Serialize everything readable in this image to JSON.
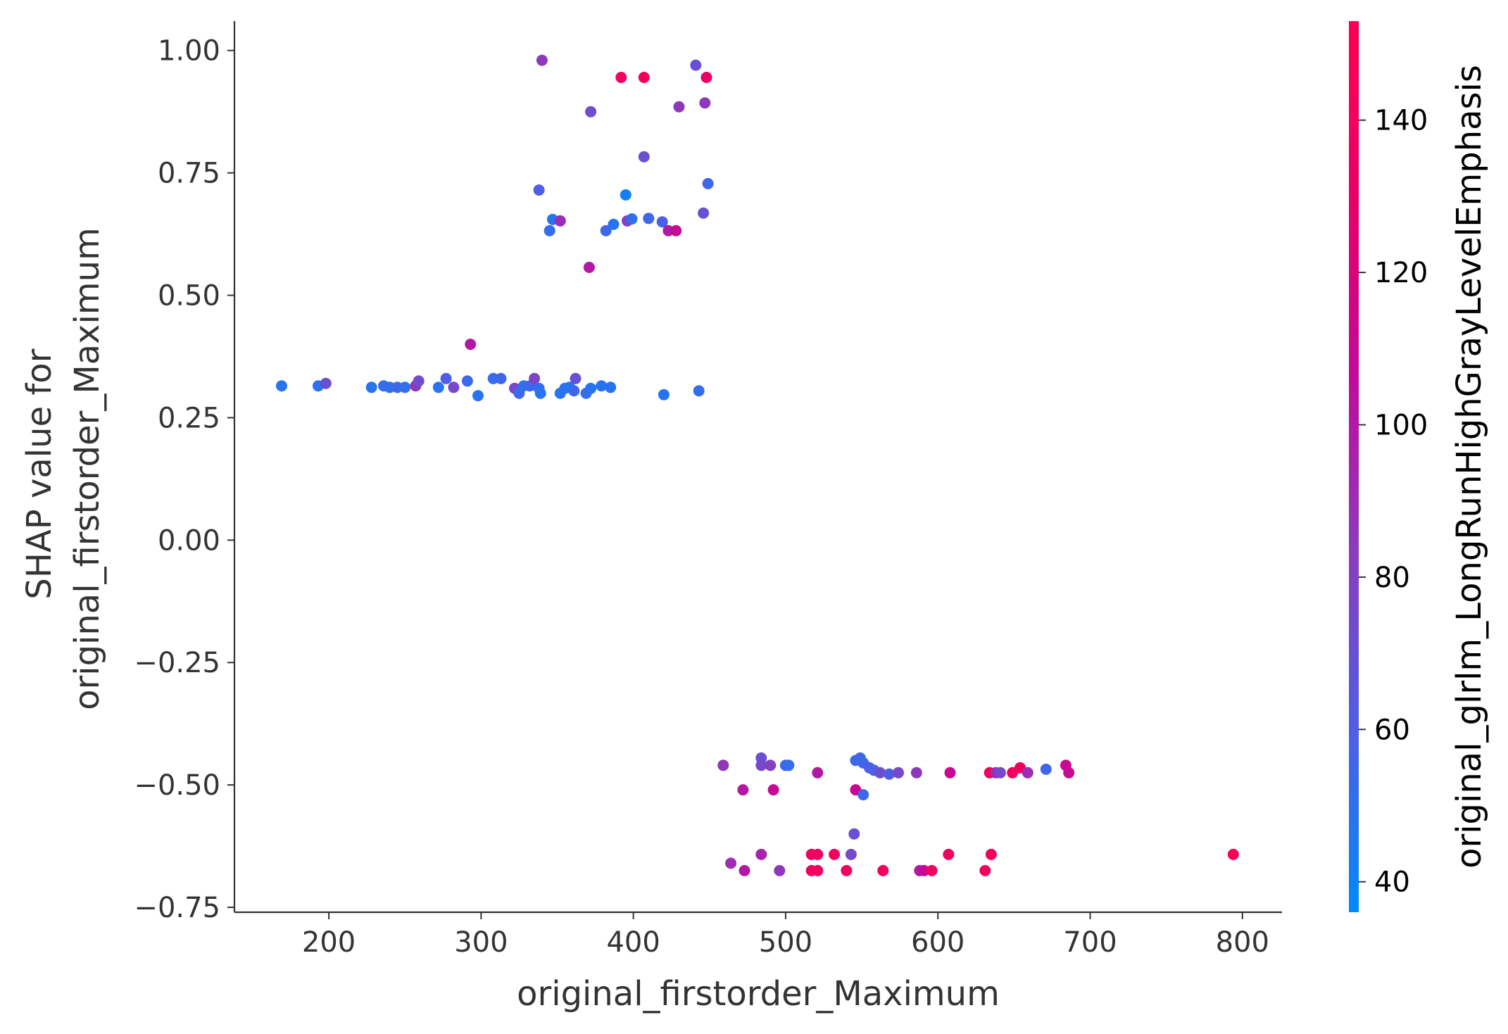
{
  "chart_data": {
    "type": "scatter",
    "xlabel": "original_firstorder_Maximum",
    "ylabel_lines": [
      "SHAP value for",
      "original_firstorder_Maximum"
    ],
    "xlim": [
      138,
      826
    ],
    "ylim": [
      -0.76,
      1.06
    ],
    "xticks": [
      200,
      300,
      400,
      500,
      600,
      700,
      800
    ],
    "yticks": [
      1.0,
      0.75,
      0.5,
      0.25,
      0.0,
      -0.25,
      -0.5,
      -0.75
    ],
    "xtick_labels": [
      "200",
      "300",
      "400",
      "500",
      "600",
      "700",
      "800"
    ],
    "ytick_labels": [
      "1.00",
      "0.75",
      "0.50",
      "0.25",
      "0.00",
      "−0.25",
      "−0.50",
      "−0.75"
    ],
    "grid": false,
    "colorbar": {
      "label": "original_glrlm_LongRunHighGrayLevelEmphasis",
      "range": [
        36,
        153
      ],
      "ticks": [
        40,
        60,
        80,
        100,
        120,
        140
      ],
      "tick_labels": [
        "40",
        "60",
        "80",
        "100",
        "120",
        "140"
      ],
      "colormap": [
        "#008AFA",
        "#4E5FE6",
        "#8A3DBD",
        "#C10B9B",
        "#E70068",
        "#FF0052"
      ]
    },
    "points": [
      [
        340,
        0.98,
        85
      ],
      [
        392,
        0.945,
        140
      ],
      [
        407,
        0.945,
        140
      ],
      [
        448,
        0.945,
        130
      ],
      [
        441,
        0.97,
        70
      ],
      [
        372,
        0.875,
        72
      ],
      [
        430,
        0.885,
        85
      ],
      [
        447,
        0.893,
        85
      ],
      [
        407,
        0.783,
        70
      ],
      [
        338,
        0.715,
        60
      ],
      [
        449,
        0.728,
        55
      ],
      [
        395,
        0.705,
        42
      ],
      [
        347,
        0.655,
        48
      ],
      [
        352,
        0.652,
        90
      ],
      [
        345,
        0.632,
        52
      ],
      [
        382,
        0.632,
        55
      ],
      [
        387,
        0.645,
        48
      ],
      [
        396,
        0.652,
        80
      ],
      [
        399,
        0.656,
        50
      ],
      [
        410,
        0.657,
        55
      ],
      [
        419,
        0.65,
        58
      ],
      [
        423,
        0.632,
        100
      ],
      [
        428,
        0.632,
        110
      ],
      [
        446,
        0.668,
        68
      ],
      [
        371,
        0.557,
        100
      ],
      [
        293,
        0.4,
        100
      ],
      [
        169,
        0.315,
        48
      ],
      [
        193,
        0.315,
        48
      ],
      [
        198,
        0.32,
        70
      ],
      [
        228,
        0.312,
        48
      ],
      [
        236,
        0.315,
        52
      ],
      [
        240,
        0.312,
        50
      ],
      [
        245,
        0.312,
        55
      ],
      [
        250,
        0.312,
        50
      ],
      [
        257,
        0.315,
        85
      ],
      [
        259,
        0.325,
        72
      ],
      [
        272,
        0.312,
        48
      ],
      [
        277,
        0.33,
        60
      ],
      [
        282,
        0.312,
        75
      ],
      [
        291,
        0.325,
        55
      ],
      [
        298,
        0.295,
        48
      ],
      [
        308,
        0.33,
        52
      ],
      [
        313,
        0.33,
        55
      ],
      [
        322,
        0.31,
        75
      ],
      [
        325,
        0.3,
        55
      ],
      [
        328,
        0.315,
        50
      ],
      [
        332,
        0.315,
        55
      ],
      [
        335,
        0.33,
        78
      ],
      [
        338,
        0.31,
        52
      ],
      [
        339,
        0.3,
        48
      ],
      [
        352,
        0.3,
        48
      ],
      [
        355,
        0.31,
        50
      ],
      [
        358,
        0.312,
        45
      ],
      [
        361,
        0.305,
        55
      ],
      [
        362,
        0.33,
        70
      ],
      [
        369,
        0.3,
        52
      ],
      [
        372,
        0.31,
        48
      ],
      [
        379,
        0.315,
        48
      ],
      [
        385,
        0.312,
        48
      ],
      [
        420,
        0.297,
        48
      ],
      [
        443,
        0.305,
        52
      ],
      [
        459,
        -0.46,
        85
      ],
      [
        484,
        -0.445,
        70
      ],
      [
        484,
        -0.46,
        75
      ],
      [
        490,
        -0.46,
        80
      ],
      [
        500,
        -0.46,
        55
      ],
      [
        502,
        -0.46,
        52
      ],
      [
        521,
        -0.475,
        100
      ],
      [
        546,
        -0.45,
        55
      ],
      [
        549,
        -0.445,
        55
      ],
      [
        551,
        -0.455,
        55
      ],
      [
        555,
        -0.465,
        60
      ],
      [
        558,
        -0.47,
        58
      ],
      [
        562,
        -0.475,
        70
      ],
      [
        568,
        -0.478,
        60
      ],
      [
        574,
        -0.475,
        75
      ],
      [
        586,
        -0.475,
        85
      ],
      [
        608,
        -0.475,
        110
      ],
      [
        634,
        -0.475,
        140
      ],
      [
        638,
        -0.475,
        90
      ],
      [
        641,
        -0.475,
        75
      ],
      [
        649,
        -0.475,
        140
      ],
      [
        654,
        -0.465,
        140
      ],
      [
        659,
        -0.475,
        90
      ],
      [
        671,
        -0.468,
        55
      ],
      [
        684,
        -0.46,
        110
      ],
      [
        686,
        -0.475,
        110
      ],
      [
        472,
        -0.51,
        100
      ],
      [
        492,
        -0.51,
        110
      ],
      [
        546,
        -0.51,
        110
      ],
      [
        551,
        -0.52,
        55
      ],
      [
        545,
        -0.6,
        70
      ],
      [
        464,
        -0.66,
        90
      ],
      [
        473,
        -0.675,
        100
      ],
      [
        484,
        -0.642,
        95
      ],
      [
        496,
        -0.675,
        85
      ],
      [
        517,
        -0.642,
        140
      ],
      [
        517,
        -0.675,
        140
      ],
      [
        521,
        -0.642,
        140
      ],
      [
        521,
        -0.675,
        140
      ],
      [
        532,
        -0.642,
        140
      ],
      [
        540,
        -0.675,
        140
      ],
      [
        543,
        -0.642,
        75
      ],
      [
        564,
        -0.675,
        140
      ],
      [
        588,
        -0.675,
        100
      ],
      [
        591,
        -0.675,
        110
      ],
      [
        596,
        -0.675,
        140
      ],
      [
        607,
        -0.642,
        140
      ],
      [
        631,
        -0.675,
        140
      ],
      [
        635,
        -0.642,
        140
      ],
      [
        794,
        -0.642,
        150
      ]
    ]
  }
}
